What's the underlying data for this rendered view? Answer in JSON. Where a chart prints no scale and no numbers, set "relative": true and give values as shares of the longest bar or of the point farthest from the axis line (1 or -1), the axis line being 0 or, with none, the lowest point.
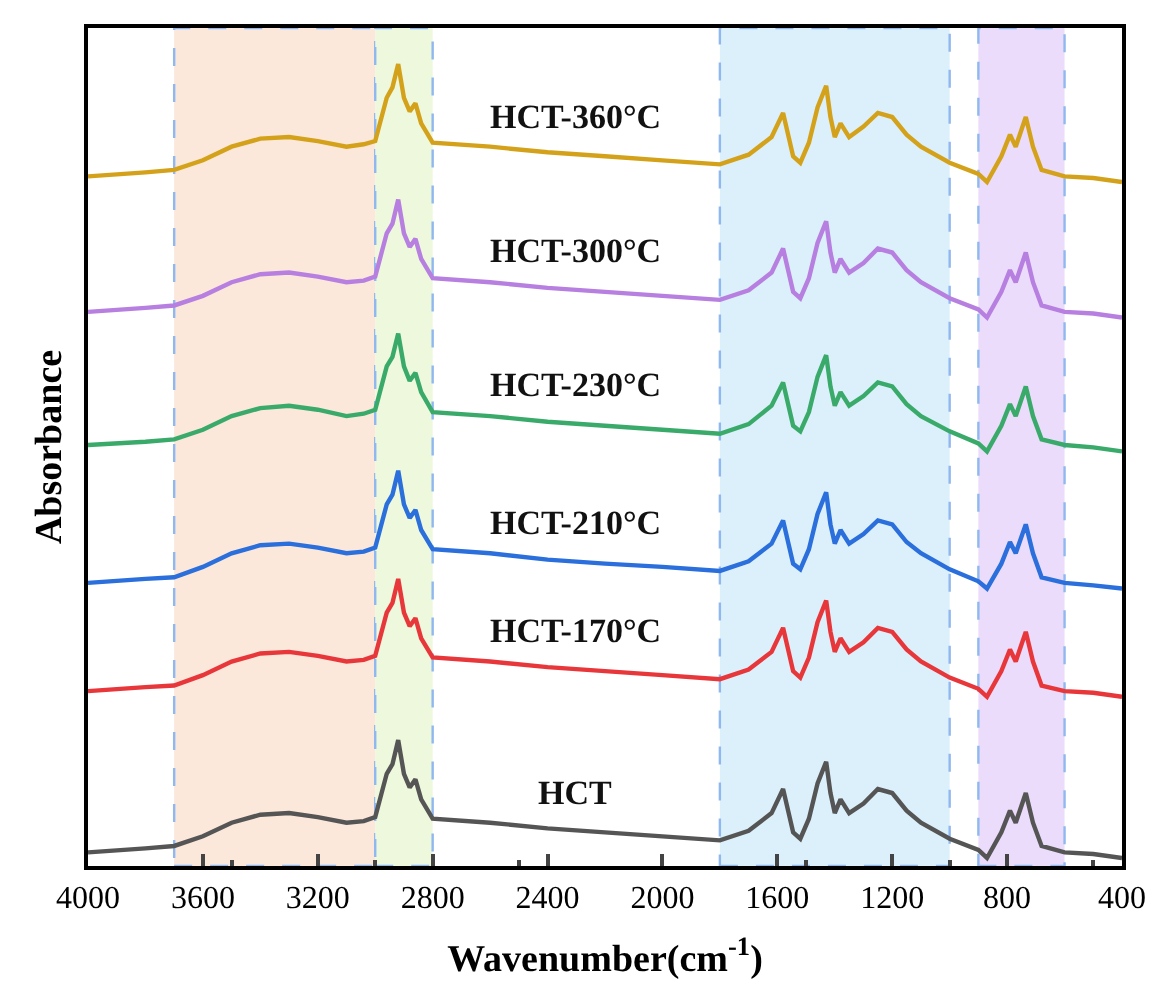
{
  "chart_data": {
    "type": "line",
    "relative": true,
    "xlabel": "Wavenumber(cm$^{-1}$)",
    "ylabel": "Absorbance",
    "x": [
      4000,
      3800,
      3700,
      3600,
      3500,
      3400,
      3300,
      3200,
      3100,
      3040,
      3000,
      2960,
      2940,
      2920,
      2900,
      2880,
      2860,
      2840,
      2800,
      2600,
      2400,
      2200,
      2000,
      1800,
      1700,
      1620,
      1580,
      1545,
      1520,
      1490,
      1460,
      1430,
      1415,
      1400,
      1380,
      1350,
      1300,
      1250,
      1200,
      1150,
      1100,
      1000,
      900,
      870,
      820,
      790,
      770,
      735,
      710,
      680,
      600,
      500,
      400
    ],
    "xlim": [
      4000,
      400
    ],
    "xticks": [
      4000,
      3600,
      3200,
      2800,
      2400,
      2000,
      1600,
      1200,
      800,
      400
    ],
    "grid": false,
    "legend": false,
    "series": [
      {
        "name": "HCT",
        "color": "#555555",
        "values": [
          0.017,
          0.022,
          0.025,
          0.037,
          0.054,
          0.064,
          0.066,
          0.061,
          0.054,
          0.056,
          0.061,
          0.115,
          0.127,
          0.157,
          0.115,
          0.098,
          0.108,
          0.083,
          0.059,
          0.054,
          0.047,
          0.042,
          0.037,
          0.032,
          0.044,
          0.066,
          0.096,
          0.042,
          0.034,
          0.059,
          0.103,
          0.13,
          0.091,
          0.066,
          0.083,
          0.066,
          0.078,
          0.096,
          0.091,
          0.069,
          0.054,
          0.034,
          0.02,
          0.01,
          0.042,
          0.069,
          0.054,
          0.091,
          0.054,
          0.025,
          0.017,
          0.015,
          0.01
        ]
      },
      {
        "name": "HCT-170°C",
        "color": "#e8373a",
        "values": [
          0.218,
          0.223,
          0.225,
          0.238,
          0.255,
          0.265,
          0.267,
          0.262,
          0.255,
          0.257,
          0.262,
          0.316,
          0.328,
          0.358,
          0.316,
          0.299,
          0.309,
          0.284,
          0.26,
          0.255,
          0.248,
          0.243,
          0.238,
          0.233,
          0.245,
          0.267,
          0.297,
          0.243,
          0.235,
          0.26,
          0.304,
          0.331,
          0.292,
          0.267,
          0.284,
          0.267,
          0.279,
          0.297,
          0.292,
          0.27,
          0.255,
          0.235,
          0.221,
          0.211,
          0.243,
          0.27,
          0.255,
          0.292,
          0.255,
          0.225,
          0.218,
          0.216,
          0.211
        ]
      },
      {
        "name": "HCT-210°C",
        "color": "#2a6fdb",
        "values": [
          0.353,
          0.358,
          0.36,
          0.373,
          0.39,
          0.4,
          0.402,
          0.397,
          0.39,
          0.392,
          0.397,
          0.451,
          0.463,
          0.493,
          0.451,
          0.434,
          0.444,
          0.419,
          0.395,
          0.39,
          0.382,
          0.377,
          0.373,
          0.368,
          0.38,
          0.402,
          0.431,
          0.377,
          0.37,
          0.395,
          0.439,
          0.466,
          0.426,
          0.402,
          0.419,
          0.402,
          0.414,
          0.431,
          0.426,
          0.404,
          0.39,
          0.37,
          0.355,
          0.346,
          0.377,
          0.404,
          0.39,
          0.426,
          0.39,
          0.36,
          0.353,
          0.35,
          0.346
        ]
      },
      {
        "name": "HCT-230°C",
        "color": "#3aaa6a",
        "values": [
          0.525,
          0.529,
          0.532,
          0.544,
          0.561,
          0.571,
          0.574,
          0.569,
          0.561,
          0.564,
          0.569,
          0.623,
          0.635,
          0.664,
          0.623,
          0.605,
          0.615,
          0.591,
          0.566,
          0.561,
          0.554,
          0.549,
          0.544,
          0.539,
          0.551,
          0.574,
          0.603,
          0.549,
          0.542,
          0.566,
          0.61,
          0.637,
          0.598,
          0.574,
          0.591,
          0.574,
          0.586,
          0.603,
          0.598,
          0.576,
          0.561,
          0.542,
          0.527,
          0.517,
          0.549,
          0.576,
          0.561,
          0.598,
          0.561,
          0.532,
          0.525,
          0.522,
          0.517
        ]
      },
      {
        "name": "HCT-300°C",
        "color": "#b77fe0",
        "values": [
          0.691,
          0.696,
          0.699,
          0.711,
          0.728,
          0.738,
          0.74,
          0.735,
          0.728,
          0.73,
          0.735,
          0.789,
          0.801,
          0.831,
          0.789,
          0.772,
          0.782,
          0.757,
          0.733,
          0.728,
          0.721,
          0.716,
          0.711,
          0.706,
          0.718,
          0.74,
          0.77,
          0.716,
          0.708,
          0.733,
          0.777,
          0.804,
          0.765,
          0.74,
          0.757,
          0.74,
          0.752,
          0.77,
          0.765,
          0.743,
          0.728,
          0.708,
          0.694,
          0.684,
          0.716,
          0.743,
          0.728,
          0.765,
          0.728,
          0.699,
          0.691,
          0.689,
          0.684
        ]
      },
      {
        "name": "HCT-360°C",
        "color": "#d4a21a",
        "values": [
          0.86,
          0.865,
          0.868,
          0.88,
          0.897,
          0.907,
          0.909,
          0.904,
          0.897,
          0.9,
          0.904,
          0.958,
          0.971,
          1,
          0.958,
          0.941,
          0.951,
          0.926,
          0.902,
          0.897,
          0.89,
          0.885,
          0.88,
          0.875,
          0.887,
          0.909,
          0.939,
          0.885,
          0.877,
          0.902,
          0.946,
          0.973,
          0.934,
          0.909,
          0.926,
          0.909,
          0.922,
          0.939,
          0.934,
          0.912,
          0.897,
          0.877,
          0.863,
          0.853,
          0.885,
          0.912,
          0.897,
          0.934,
          0.897,
          0.868,
          0.86,
          0.858,
          0.853
        ]
      }
    ],
    "bands": [
      {
        "axis": "x",
        "from": 3700,
        "to": 3000,
        "color": "#fbe8da"
      },
      {
        "axis": "x",
        "from": 3000,
        "to": 2800,
        "color": "#eef8dc"
      },
      {
        "axis": "x",
        "from": 1800,
        "to": 1000,
        "color": "#dcf0fb"
      },
      {
        "axis": "x",
        "from": 900,
        "to": 600,
        "color": "#ebdcfb"
      }
    ]
  }
}
